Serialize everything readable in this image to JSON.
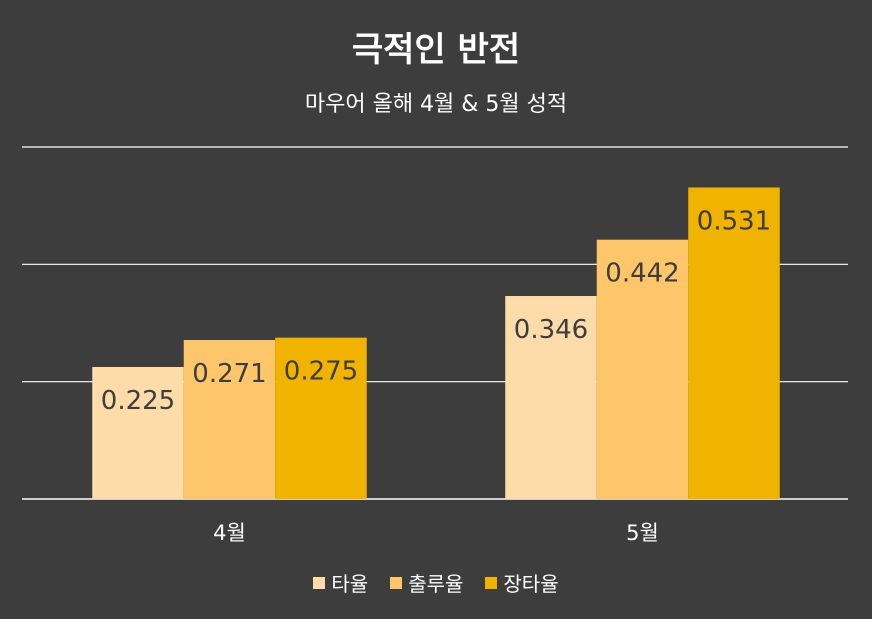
{
  "chart_data": {
    "type": "bar",
    "title": "극적인 반전",
    "subtitle": "마우어 올해 4월 & 5월 성적",
    "categories": [
      "4월",
      "5월"
    ],
    "series": [
      {
        "name": "타율",
        "values": [
          0.225,
          0.346
        ],
        "labels": [
          "0.225",
          "0.346"
        ],
        "color": "#fddcaa"
      },
      {
        "name": "출루율",
        "values": [
          0.271,
          0.442
        ],
        "labels": [
          "0.271",
          "0.442"
        ],
        "color": "#fec66a"
      },
      {
        "name": "장타율",
        "values": [
          0.275,
          0.531
        ],
        "labels": [
          "0.275",
          "0.531"
        ],
        "color": "#f0b400"
      }
    ],
    "ylim": [
      0,
      0.6
    ],
    "grid": true,
    "legend_position": "bottom",
    "colors": {
      "background": "#3d3d3d",
      "gridline": "#ffffff",
      "text": "#ffffff",
      "label": "#3d3d3d"
    }
  }
}
